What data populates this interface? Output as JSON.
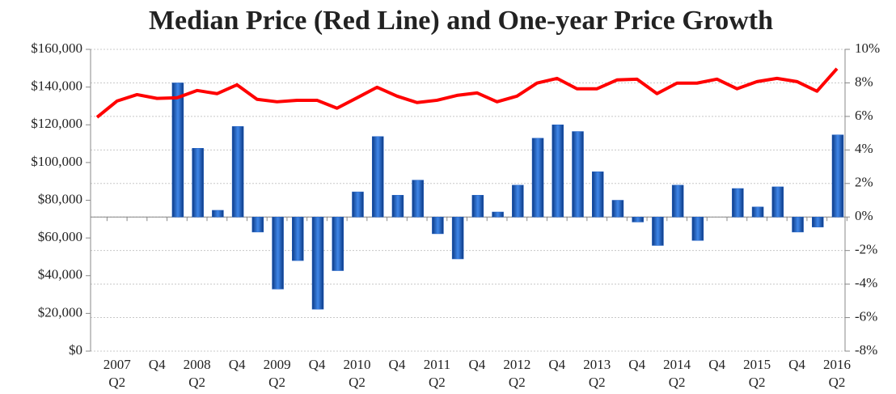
{
  "chart_data": {
    "type": "combo",
    "title": "Median Price (Red Line) and One-year Price Growth",
    "categories": [
      null,
      "2007 Q2",
      null,
      "Q4",
      null,
      "2008 Q2",
      null,
      "Q4",
      null,
      "2009 Q2",
      null,
      "Q4",
      null,
      "2010 Q2",
      null,
      "Q4",
      null,
      "2011 Q2",
      null,
      "Q4",
      null,
      "2012 Q2",
      null,
      "Q4",
      null,
      "2013 Q2",
      null,
      "Q4",
      null,
      "2014 Q2",
      null,
      "Q4",
      null,
      "2015 Q2",
      null,
      "Q4",
      null,
      "2016 Q2"
    ],
    "series": [
      {
        "type": "bar",
        "axis": "y2",
        "color": "#1f5fc4",
        "values": [
          null,
          null,
          null,
          null,
          8.0,
          4.1,
          0.4,
          5.4,
          -0.9,
          -4.3,
          -2.6,
          -5.5,
          -3.2,
          1.5,
          4.8,
          1.3,
          2.2,
          -1.0,
          -2.5,
          1.3,
          0.3,
          1.9,
          4.7,
          5.5,
          5.1,
          2.7,
          1.0,
          -0.3,
          -1.7,
          1.9,
          -1.4,
          0,
          1.7,
          0.6,
          1.8,
          -0.9,
          -0.6,
          4.9
        ]
      },
      {
        "type": "line",
        "color": "#ff0000",
        "values": [
          124000,
          132600,
          136000,
          134000,
          134300,
          138200,
          136500,
          141200,
          133500,
          132200,
          133000,
          133000,
          128800,
          134300,
          139900,
          135200,
          131800,
          133000,
          135600,
          136900,
          132200,
          135200,
          142100,
          144600,
          139100,
          139100,
          143800,
          144200,
          136500,
          142100,
          142100,
          144200,
          139100,
          142900,
          144600,
          142900,
          137800,
          149800
        ]
      }
    ],
    "ylim": [
      0,
      160000
    ],
    "yticks": [
      {
        "value": 0,
        "label": "$0"
      },
      {
        "value": 20000,
        "label": "$20,000"
      },
      {
        "value": 40000,
        "label": "$40,000"
      },
      {
        "value": 60000,
        "label": "$60,000"
      },
      {
        "value": 80000,
        "label": "$80,000"
      },
      {
        "value": 100000,
        "label": "$100,000"
      },
      {
        "value": 120000,
        "label": "$120,000"
      },
      {
        "value": 140000,
        "label": "$140,000"
      },
      {
        "value": 160000,
        "label": "$160,000"
      }
    ],
    "y2lim": [
      -8,
      10
    ],
    "y2ticks": [
      {
        "value": -8,
        "label": "-8%"
      },
      {
        "value": -6,
        "label": "-6%"
      },
      {
        "value": -4,
        "label": "-4%"
      },
      {
        "value": -2,
        "label": "-2%"
      },
      {
        "value": 0,
        "label": "0%"
      },
      {
        "value": 2,
        "label": "2%"
      },
      {
        "value": 4,
        "label": "4%"
      },
      {
        "value": 6,
        "label": "6%"
      },
      {
        "value": 8,
        "label": "8%"
      },
      {
        "value": 10,
        "label": "10%"
      }
    ],
    "grid": true
  }
}
